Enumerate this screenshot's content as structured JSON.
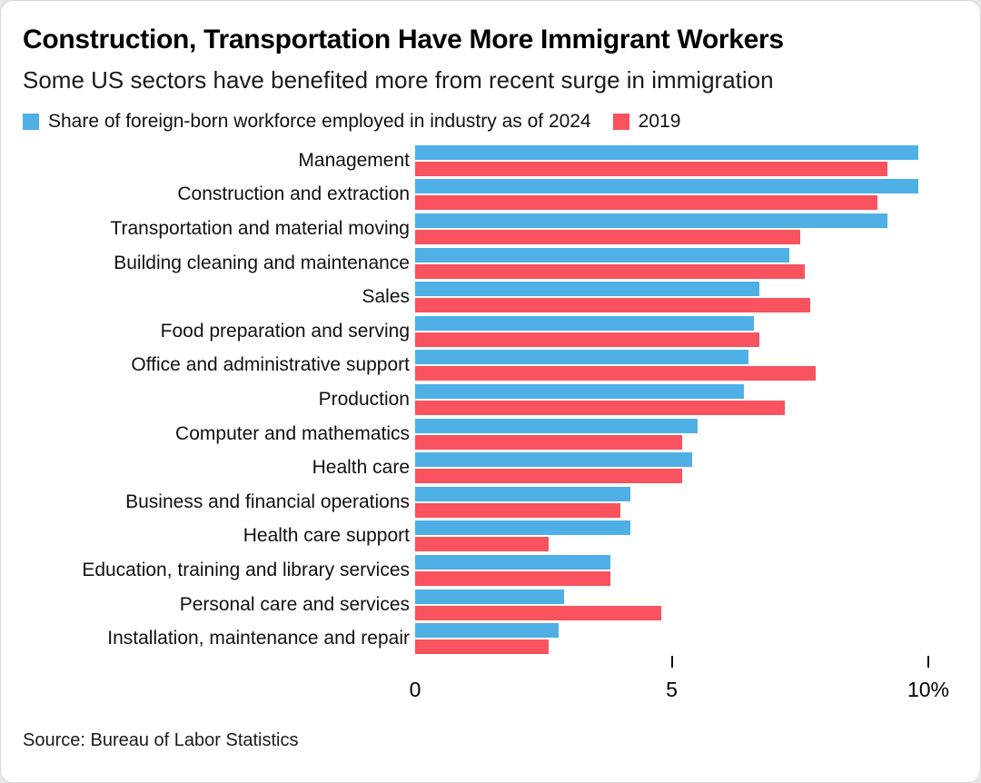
{
  "header": {
    "title": "Construction, Transportation Have More Immigrant Workers",
    "subtitle": "Some US sectors have benefited more from recent surge in immigration"
  },
  "legend": [
    {
      "label": "Share of foreign-born workforce employed in industry as of 2024",
      "color": "#4fb0e6"
    },
    {
      "label": "2019",
      "color": "#f8535e"
    }
  ],
  "chart_data": {
    "type": "bar",
    "orientation": "horizontal",
    "title": "Construction, Transportation Have More Immigrant Workers",
    "subtitle": "Some US sectors have benefited more from recent surge in immigration",
    "xlabel": "",
    "ylabel": "",
    "xlim": [
      0,
      10
    ],
    "xticks": [
      0,
      5,
      10
    ],
    "xtick_labels": [
      "0",
      "5",
      "10%"
    ],
    "grid": false,
    "legend_position": "top",
    "categories": [
      "Management",
      "Construction and extraction",
      "Transportation and material moving",
      "Building cleaning and maintenance",
      "Sales",
      "Food preparation and serving",
      "Office and administrative support",
      "Production",
      "Computer and mathematics",
      "Health care",
      "Business and financial operations",
      "Health care support",
      "Education, training and library services",
      "Personal care and services",
      "Installation, maintenance and repair"
    ],
    "series": [
      {
        "name": "2024",
        "color": "#4fb0e6",
        "values": [
          9.8,
          9.8,
          9.2,
          7.3,
          6.7,
          6.6,
          6.5,
          6.4,
          5.5,
          5.4,
          4.2,
          4.2,
          3.8,
          2.9,
          2.8
        ]
      },
      {
        "name": "2019",
        "color": "#f8535e",
        "values": [
          9.2,
          9.0,
          7.5,
          7.6,
          7.7,
          6.7,
          7.8,
          7.2,
          5.2,
          5.2,
          4.0,
          2.6,
          3.8,
          4.8,
          2.6
        ]
      }
    ]
  },
  "source": "Source: Bureau of Labor Statistics"
}
